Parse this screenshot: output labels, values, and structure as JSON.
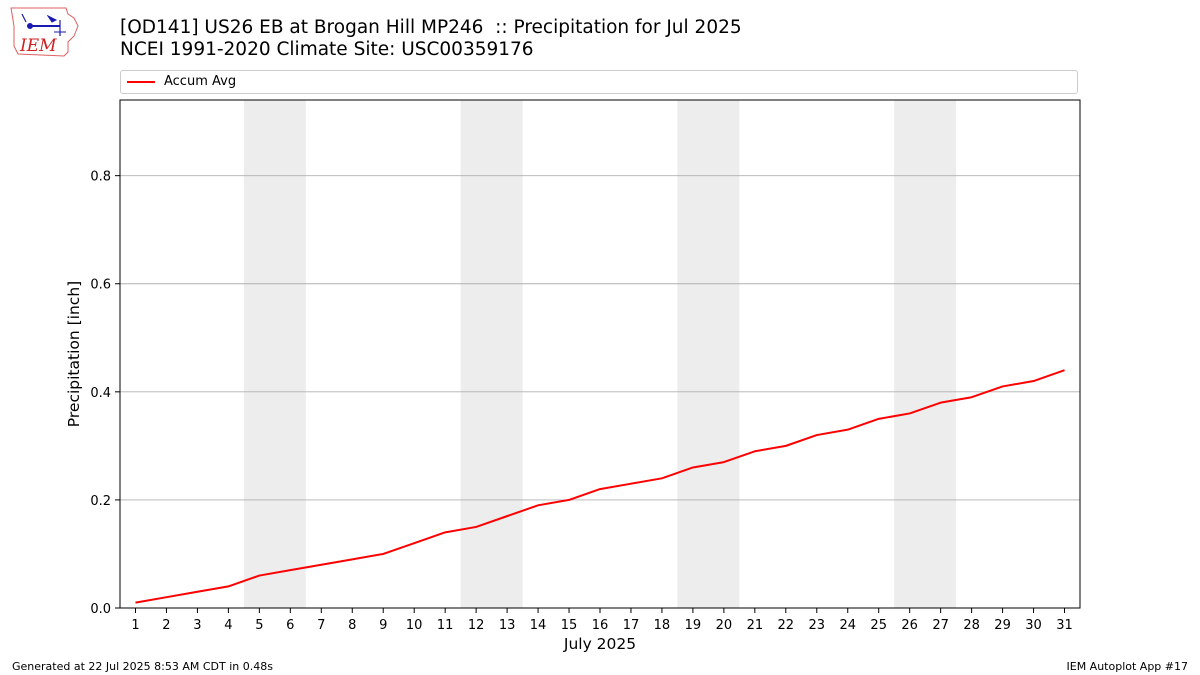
{
  "header": {
    "title_line1": "[OD141] US26 EB at Brogan Hill MP246  :: Precipitation for Jul 2025",
    "title_line2": "NCEI 1991-2020 Climate Site: USC00359176",
    "logo_text": "IEM"
  },
  "footer": {
    "generated": "Generated at 22 Jul 2025 8:53 AM CDT in 0.48s",
    "app": "IEM Autoplot App #17"
  },
  "colors": {
    "line": "#ff0000",
    "weekend_band": "#ededed",
    "grid": "#b0b0b0"
  },
  "chart_data": {
    "type": "line",
    "xlabel": "July 2025",
    "ylabel": "Precipitation [inch]",
    "xlim": [
      0.5,
      31.5
    ],
    "ylim": [
      0,
      0.94
    ],
    "yticks": [
      0.0,
      0.2,
      0.4,
      0.6,
      0.8
    ],
    "ytick_labels": [
      "0.0",
      "0.2",
      "0.4",
      "0.6",
      "0.8"
    ],
    "x": [
      1,
      2,
      3,
      4,
      5,
      6,
      7,
      8,
      9,
      10,
      11,
      12,
      13,
      14,
      15,
      16,
      17,
      18,
      19,
      20,
      21,
      22,
      23,
      24,
      25,
      26,
      27,
      28,
      29,
      30,
      31
    ],
    "xtick_labels": [
      "1",
      "2",
      "3",
      "4",
      "5",
      "6",
      "7",
      "8",
      "9",
      "10",
      "11",
      "12",
      "13",
      "14",
      "15",
      "16",
      "17",
      "18",
      "19",
      "20",
      "21",
      "22",
      "23",
      "24",
      "25",
      "26",
      "27",
      "28",
      "29",
      "30",
      "31"
    ],
    "grid": "y-major",
    "legend_position": "top",
    "weekend_bands": [
      [
        5,
        6
      ],
      [
        12,
        13
      ],
      [
        19,
        20
      ],
      [
        26,
        27
      ]
    ],
    "series": [
      {
        "name": "Accum Avg",
        "values": [
          0.01,
          0.02,
          0.03,
          0.04,
          0.06,
          0.07,
          0.08,
          0.09,
          0.1,
          0.12,
          0.14,
          0.15,
          0.17,
          0.19,
          0.2,
          0.22,
          0.23,
          0.24,
          0.26,
          0.27,
          0.29,
          0.3,
          0.32,
          0.33,
          0.35,
          0.36,
          0.38,
          0.39,
          0.41,
          0.42,
          0.44
        ]
      }
    ]
  }
}
